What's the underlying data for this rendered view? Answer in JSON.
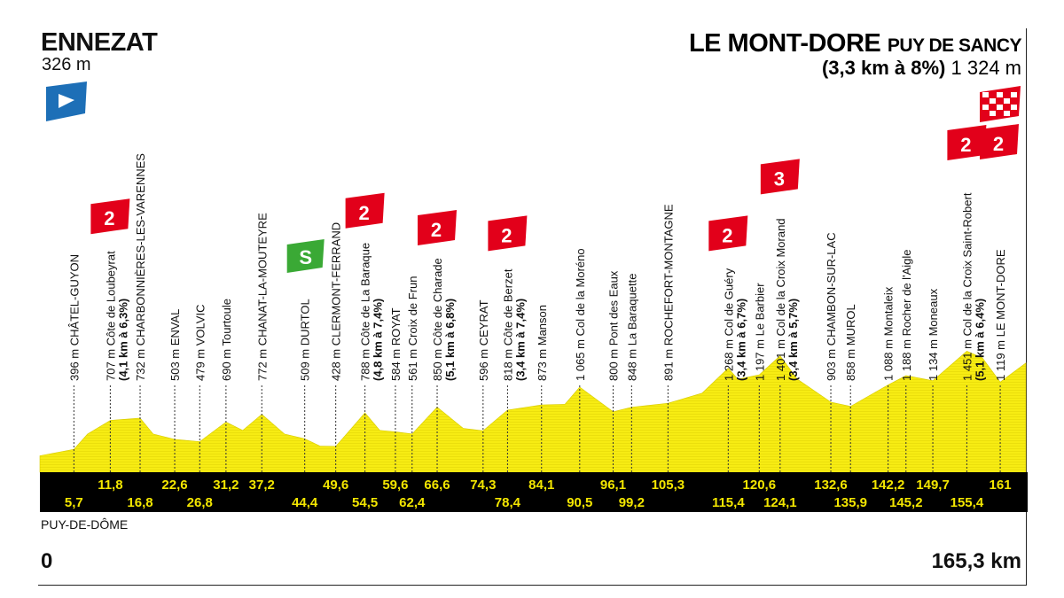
{
  "header": {
    "start_town": "ENNEZAT",
    "start_altitude": "326 m",
    "finish_town": "LE MONT-DORE",
    "finish_suffix": "PUY DE SANCY",
    "finish_climb": "(3,3 km à 8%)",
    "finish_altitude": "1 324 m"
  },
  "footer": {
    "region": "PUY-DE-DÔME",
    "km_start": "0",
    "km_end": "165,3 km"
  },
  "colors": {
    "profile_fill": "#f7ec13",
    "profile_stripe": "#e8dc0a",
    "band": "#000000",
    "band_text": "#f3e600",
    "kom_red": "#e2001a",
    "sprint_green": "#3aa935",
    "start_blue": "#1d6fb7"
  },
  "icons": {
    "start": "start-flag-icon",
    "sprint": "intermediate-sprint-icon",
    "kom": "kom-category-icon",
    "finish": "finish-checkered-flag-icon"
  },
  "chart_data": {
    "type": "area",
    "title": "",
    "xlabel": "",
    "ylabel": "",
    "x_range": [
      0,
      165.3
    ],
    "altitude_profile": {
      "x": [
        0,
        5.7,
        8,
        11.8,
        16.8,
        19,
        22.6,
        26.8,
        31.2,
        34,
        37.2,
        41,
        44.4,
        47,
        49.6,
        54.5,
        57,
        59.6,
        62.4,
        66.6,
        71,
        74.3,
        78.4,
        84.1,
        88,
        90.5,
        96.1,
        99.2,
        105.3,
        111,
        115.4,
        117,
        120.6,
        124.1,
        127,
        132.6,
        135.9,
        142.2,
        145.2,
        149.7,
        155.4,
        158,
        161,
        165.3
      ],
      "y": [
        326,
        396,
        560,
        707,
        732,
        560,
        503,
        479,
        690,
        600,
        772,
        560,
        509,
        430,
        428,
        788,
        600,
        584,
        561,
        850,
        620,
        596,
        818,
        873,
        880,
        1065,
        800,
        848,
        891,
        1000,
        1268,
        1150,
        1197,
        1401,
        1150,
        903,
        858,
        1088,
        1188,
        1134,
        1451,
        1380,
        1119,
        1324
      ]
    },
    "points": [
      {
        "km": "5,7",
        "alt": "396 m",
        "name": "CHÂTEL-GUYON",
        "row": 2
      },
      {
        "km": "11,8",
        "alt": "707 m",
        "name": "Côte de Loubeyrat",
        "detail": "(4,1 km à 6,3%)",
        "kom": "2",
        "row": 1
      },
      {
        "km": "16,8",
        "alt": "732 m",
        "name": "CHARBONNIÈRES-LES-VARENNES",
        "row": 2
      },
      {
        "km": "22,6",
        "alt": "503 m",
        "name": "ENVAL",
        "row": 1
      },
      {
        "km": "26,8",
        "alt": "479 m",
        "name": "VOLVIC",
        "row": 2
      },
      {
        "km": "31,2",
        "alt": "690 m",
        "name": "Tourtoule",
        "row": 1
      },
      {
        "km": "37,2",
        "alt": "772 m",
        "name": "CHANAT-LA-MOUTEYRE",
        "row": 1
      },
      {
        "km": "44,4",
        "alt": "509 m",
        "name": "DURTOL",
        "sprint": true,
        "row": 2
      },
      {
        "km": "49,6",
        "alt": "428 m",
        "name": "CLERMONT-FERRAND",
        "row": 1
      },
      {
        "km": "54,5",
        "alt": "788 m",
        "name": "Côte de La Baraque",
        "detail": "(4,8 km à 7,4%)",
        "kom": "2",
        "row": 2
      },
      {
        "km": "59,6",
        "alt": "584 m",
        "name": "ROYAT",
        "row": 1
      },
      {
        "km": "62,4",
        "alt": "561 m",
        "name": "Croix de Frun",
        "row": 2
      },
      {
        "km": "66,6",
        "alt": "850 m",
        "name": "Côte de Charade",
        "detail": "(5,1 km à 6,8%)",
        "kom": "2",
        "row": 1
      },
      {
        "km": "74,3",
        "alt": "596 m",
        "name": "CEYRAT",
        "row": 1
      },
      {
        "km": "78,4",
        "alt": "818 m",
        "name": "Côte de Berzet",
        "detail": "(3,4 km à 7,4%)",
        "kom": "2",
        "row": 2
      },
      {
        "km": "84,1",
        "alt": "873 m",
        "name": "Manson",
        "row": 1
      },
      {
        "km": "90,5",
        "alt": "1 065 m",
        "name": "Col de la Moréno",
        "row": 2
      },
      {
        "km": "96,1",
        "alt": "800 m",
        "name": "Pont des Eaux",
        "row": 1
      },
      {
        "km": "99,2",
        "alt": "848 m",
        "name": "La Baraquette",
        "row": 2
      },
      {
        "km": "105,3",
        "alt": "891 m",
        "name": "ROCHEFORT-MONTAGNE",
        "row": 1
      },
      {
        "km": "115,4",
        "alt": "1 268 m",
        "name": "Col de Guéry",
        "detail": "(3,4 km à 6,7%)",
        "kom": "2",
        "row": 2
      },
      {
        "km": "120,6",
        "alt": "1 197 m",
        "name": "Le Barbier",
        "row": 1
      },
      {
        "km": "124,1",
        "alt": "1 401 m",
        "name": "Col de la Croix Morand",
        "detail": "(3,4 km à 5,7%)",
        "kom": "3",
        "row": 2
      },
      {
        "km": "132,6",
        "alt": "903 m",
        "name": "CHAMBON-SUR-LAC",
        "row": 1
      },
      {
        "km": "135,9",
        "alt": "858 m",
        "name": "MUROL",
        "row": 2
      },
      {
        "km": "142,2",
        "alt": "1 088 m",
        "name": "Montaleix",
        "row": 1
      },
      {
        "km": "145,2",
        "alt": "1 188 m",
        "name": "Rocher de l'Aigle",
        "row": 2
      },
      {
        "km": "149,7",
        "alt": "1 134 m",
        "name": "Moneaux",
        "row": 1
      },
      {
        "km": "155,4",
        "alt": "1 451 m",
        "name": "Col de la Croix Saint-Robert",
        "detail": "(5,1 km à 6,4%)",
        "kom": "2",
        "row": 2
      },
      {
        "km": "161",
        "alt": "1 119 m",
        "name": "LE MONT-DORE",
        "row": 1
      }
    ],
    "finish_kom": "2"
  }
}
